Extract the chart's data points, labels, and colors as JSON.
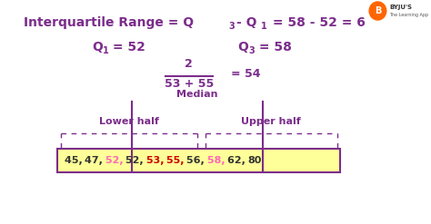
{
  "background_color": "#ffffff",
  "purple": "#7b2d8b",
  "pink": "#ff69b4",
  "red": "#cc0000",
  "black": "#333333",
  "box_fill": "#ffff99",
  "lower_half_label": "Lower half",
  "upper_half_label": "Upper half",
  "median_label": "Median",
  "nums": [
    "45, ",
    "47, ",
    "52, ",
    "52, ",
    "53, ",
    "55, ",
    "56, ",
    "58, ",
    "62, ",
    "80"
  ],
  "num_colors": [
    "#333333",
    "#333333",
    "#ff69b4",
    "#333333",
    "#cc0000",
    "#cc0000",
    "#333333",
    "#ff69b4",
    "#333333",
    "#333333"
  ]
}
